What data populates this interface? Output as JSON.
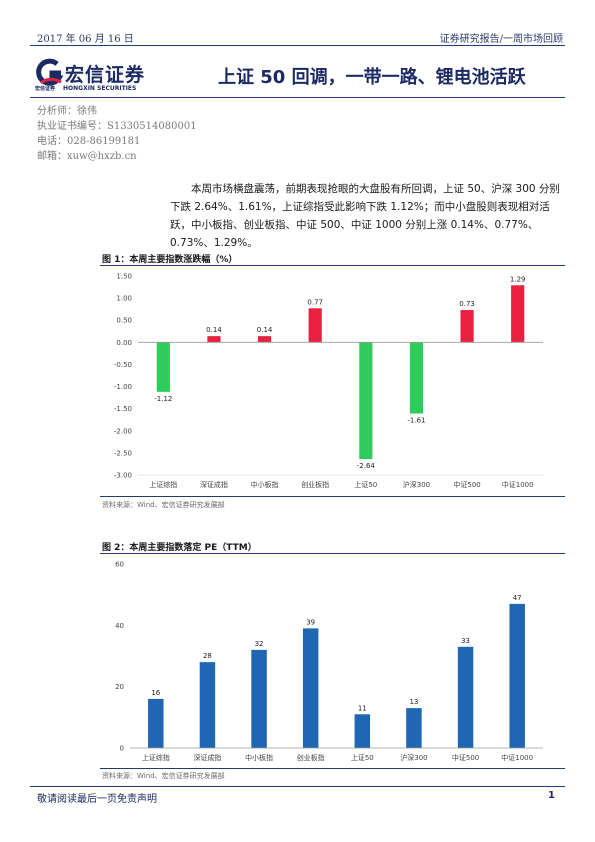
{
  "header": {
    "date": "2017 年 06 月 16 日",
    "report_type": "证券研究报告/一周市场回顾"
  },
  "logo": {
    "name_cn": "宏信证券",
    "name_cn_small": "宏信证券",
    "name_en": "HONGXIN SECURITIES"
  },
  "title": "上证 50 回调，一带一路、锂电池活跃",
  "meta": {
    "analyst": "分析师：徐伟",
    "license": "执业证书编号：S1330514080001",
    "phone": "电话：028-86199181",
    "email": "邮箱：xuw@hxzb.cn"
  },
  "paragraph": "本周市场横盘震荡，前期表现抢眼的大盘股有所回调，上证 50、沪深 300 分别下跌 2.64%、1.61%，上证综指受此影响下跌 1.12%；而中小盘股则表现相对活跃，中小板指、创业板指、中证 500、中证 1000 分别上涨 0.14%、0.77%、0.73%、1.29%。",
  "figures": [
    {
      "title": "图 1：本周主要指数涨跌幅（%）",
      "source": "资料来源：Wind、宏信证券研究发展部"
    },
    {
      "title": "图 2：本周主要指数落定 PE（TTM）",
      "source": "资料来源：Wind、宏信证券研究发展部"
    }
  ],
  "chart_data": [
    {
      "type": "bar",
      "title": "图 1：本周主要指数涨跌幅（%）",
      "categories": [
        "上证综指",
        "深证成指",
        "中小板指",
        "创业板指",
        "上证50",
        "沪深300",
        "中证500",
        "中证1000"
      ],
      "values": [
        -1.12,
        0.14,
        0.14,
        0.77,
        -2.64,
        -1.61,
        0.73,
        1.29
      ],
      "value_labels": [
        "-1.12",
        "0.14",
        "0.14",
        "0.77",
        "-2.64",
        "-1.61",
        "0.73",
        "1.29"
      ],
      "ylim": [
        -3.0,
        1.5
      ],
      "yticks": [
        "1.50",
        "1.00",
        "0.50",
        "0.00",
        "-0.50",
        "-1.00",
        "-1.50",
        "-2.00",
        "-2.50",
        "-3.00"
      ],
      "colors": {
        "positive": "#e8213f",
        "negative": "#2ecc5a"
      },
      "grid": false
    },
    {
      "type": "bar",
      "title": "图 2：本周主要指数落定 PE（TTM）",
      "categories": [
        "上证综指",
        "深证成指",
        "中小板指",
        "创业板指",
        "上证50",
        "沪深300",
        "中证500",
        "中证1000"
      ],
      "values": [
        16,
        28,
        32,
        39,
        11,
        13,
        33,
        47
      ],
      "value_labels": [
        "16",
        "28",
        "32",
        "39",
        "11",
        "13",
        "33",
        "47"
      ],
      "ylim": [
        0,
        60
      ],
      "yticks": [
        "60",
        "40",
        "20",
        "0"
      ],
      "colors": {
        "bar": "#1f66b3"
      },
      "grid": false
    }
  ],
  "footer": {
    "disclaimer": "敬请阅读最后一页免责声明",
    "page": "1"
  }
}
